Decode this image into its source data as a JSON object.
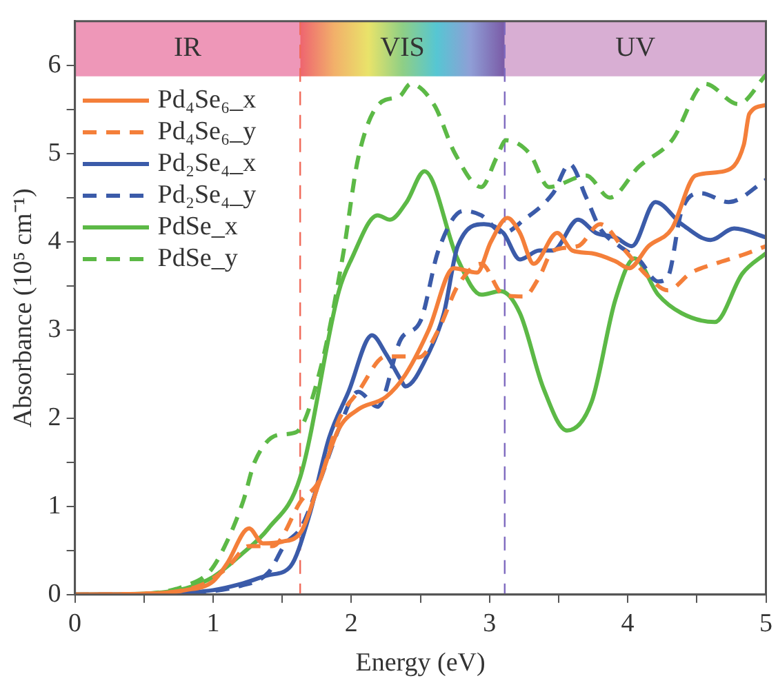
{
  "chart_data": {
    "type": "line",
    "xlabel": "Energy (eV)",
    "ylabel": "Absorbance (10⁵ cm⁻¹)",
    "xlim": [
      0,
      5
    ],
    "ylim": [
      0,
      6.5
    ],
    "xticks": [
      0,
      {
        "value": 0.5,
        "label": null
      },
      1,
      {
        "value": 1.5,
        "label": null
      },
      2,
      {
        "value": 2.5,
        "label": null
      },
      3,
      {
        "value": 3.5,
        "label": null
      },
      4,
      {
        "value": 4.5,
        "label": null
      },
      5
    ],
    "yticks": [
      0,
      {
        "value": 0.5,
        "label": null
      },
      1,
      {
        "value": 1.5,
        "label": null
      },
      2,
      {
        "value": 2.5,
        "label": null
      },
      3,
      {
        "value": 3.5,
        "label": null
      },
      4,
      {
        "value": 4.5,
        "label": null
      },
      5,
      {
        "value": 5.5,
        "label": null
      },
      6
    ],
    "grid": false,
    "legend": "top left",
    "marker": "none",
    "bands": [
      {
        "axis": "x",
        "from": 0,
        "to": 1.63,
        "label": "IR",
        "color": "#ee97b8"
      },
      {
        "axis": "x",
        "from": 1.63,
        "to": 3.11,
        "label": "VIS"
      },
      {
        "axis": "x",
        "from": 3.11,
        "to": 5,
        "label": "UV",
        "color": "#d8aed3"
      }
    ],
    "ref_lines": [
      {
        "axis": "x",
        "value": 1.63,
        "color": "#f06a5a",
        "line_style": "dashed"
      },
      {
        "axis": "x",
        "value": 3.11,
        "color": "#7f6bc0",
        "line_style": "dashed"
      }
    ],
    "series": [
      {
        "name": "Pd₄Se₆_x",
        "color": "#f47f3a",
        "line_style": "solid",
        "x": [
          0,
          0.5,
          0.8,
          1.0,
          1.1,
          1.26,
          1.36,
          1.5,
          1.64,
          1.77,
          1.91,
          2.05,
          2.25,
          2.39,
          2.56,
          2.74,
          2.91,
          3.01,
          3.13,
          3.22,
          3.32,
          3.49,
          3.6,
          3.74,
          3.91,
          4.01,
          4.15,
          4.32,
          4.49,
          4.7,
          4.84,
          4.88,
          5.0
        ],
        "values": [
          0,
          0.01,
          0.05,
          0.15,
          0.35,
          0.75,
          0.58,
          0.6,
          0.72,
          1.28,
          1.88,
          2.1,
          2.24,
          2.49,
          3.0,
          3.7,
          3.65,
          4.0,
          4.27,
          4.1,
          3.75,
          4.1,
          3.9,
          3.87,
          3.78,
          3.7,
          3.95,
          4.15,
          4.75,
          4.8,
          5.1,
          5.45,
          5.55
        ]
      },
      {
        "name": "Pd₄Se₆_y",
        "color": "#f47f3a",
        "line_style": "dashed",
        "x": [
          0,
          0.5,
          0.9,
          1.1,
          1.26,
          1.43,
          1.64,
          1.77,
          1.91,
          2.05,
          2.25,
          2.39,
          2.49,
          2.63,
          2.77,
          2.94,
          3.1,
          3.25,
          3.36,
          3.46,
          3.64,
          3.8,
          3.98,
          4.15,
          4.29,
          4.46,
          4.63,
          4.83,
          5.0
        ],
        "values": [
          0,
          0.01,
          0.1,
          0.3,
          0.55,
          0.55,
          1.07,
          1.3,
          1.98,
          2.3,
          2.7,
          2.7,
          2.69,
          3.0,
          3.5,
          3.75,
          3.4,
          3.38,
          3.6,
          3.9,
          3.95,
          4.2,
          3.9,
          3.6,
          3.45,
          3.65,
          3.75,
          3.85,
          3.95
        ]
      },
      {
        "name": "Pd₂Se₄_x",
        "color": "#3b5ba9",
        "line_style": "solid",
        "x": [
          0,
          0.6,
          1.0,
          1.2,
          1.4,
          1.56,
          1.7,
          1.84,
          1.98,
          2.15,
          2.25,
          2.36,
          2.39,
          2.56,
          2.67,
          2.77,
          2.96,
          3.1,
          3.22,
          3.36,
          3.46,
          3.64,
          3.77,
          3.91,
          4.03,
          4.2,
          4.39,
          4.6,
          4.77,
          5.0
        ],
        "values": [
          0,
          0.01,
          0.05,
          0.12,
          0.22,
          0.32,
          0.92,
          1.78,
          2.3,
          2.94,
          2.73,
          2.43,
          2.36,
          2.74,
          3.19,
          3.95,
          4.2,
          4.1,
          3.8,
          3.9,
          3.9,
          4.25,
          4.1,
          4.05,
          3.95,
          4.45,
          4.2,
          4.02,
          4.15,
          4.05
        ]
      },
      {
        "name": "Pd₂Se₄_y",
        "color": "#3b5ba9",
        "line_style": "dashed",
        "x": [
          0,
          0.6,
          1.2,
          1.4,
          1.52,
          1.64,
          1.77,
          1.91,
          2.05,
          2.19,
          2.36,
          2.5,
          2.63,
          2.81,
          2.94,
          3.1,
          3.25,
          3.46,
          3.58,
          3.7,
          3.8,
          3.94,
          4.08,
          4.22,
          4.29,
          4.39,
          4.53,
          4.73,
          5.0
        ],
        "values": [
          0,
          0.01,
          0.1,
          0.25,
          0.57,
          0.77,
          1.28,
          1.88,
          2.3,
          2.13,
          2.9,
          3.1,
          3.9,
          4.35,
          4.3,
          4.1,
          4.25,
          4.55,
          4.88,
          4.5,
          4.15,
          3.95,
          3.8,
          3.55,
          3.6,
          4.35,
          4.55,
          4.45,
          4.7
        ]
      },
      {
        "name": "PdSe_x",
        "color": "#5cb946",
        "line_style": "solid",
        "x": [
          0,
          0.5,
          0.6,
          0.8,
          1.0,
          1.2,
          1.4,
          1.63,
          1.91,
          2.0,
          2.19,
          2.28,
          2.4,
          2.53,
          2.77,
          2.94,
          3.08,
          3.22,
          3.39,
          3.56,
          3.74,
          3.91,
          4.05,
          4.22,
          4.39,
          4.63,
          4.83,
          5.0
        ],
        "values": [
          0,
          0.01,
          0.02,
          0.07,
          0.2,
          0.45,
          0.75,
          1.33,
          3.44,
          3.8,
          4.3,
          4.25,
          4.45,
          4.8,
          3.8,
          3.4,
          3.44,
          3.19,
          2.34,
          1.86,
          2.19,
          3.34,
          3.81,
          3.4,
          3.19,
          3.09,
          3.64,
          3.87
        ]
      },
      {
        "name": "PdSe_y",
        "color": "#5cb946",
        "line_style": "dashed",
        "x": [
          0,
          0.5,
          0.8,
          0.98,
          1.1,
          1.22,
          1.3,
          1.47,
          1.6,
          1.78,
          1.94,
          2.05,
          2.2,
          2.35,
          2.43,
          2.6,
          2.75,
          2.94,
          3.05,
          3.12,
          3.29,
          3.43,
          3.7,
          3.87,
          4.08,
          4.32,
          4.56,
          4.8,
          5.0
        ],
        "values": [
          0,
          0.01,
          0.1,
          0.27,
          0.6,
          1.07,
          1.5,
          1.81,
          1.84,
          2.58,
          3.85,
          4.95,
          5.56,
          5.65,
          5.79,
          5.55,
          5.0,
          4.62,
          4.95,
          5.15,
          5.0,
          4.62,
          4.75,
          4.5,
          4.85,
          5.15,
          5.79,
          5.56,
          5.89
        ]
      }
    ]
  }
}
